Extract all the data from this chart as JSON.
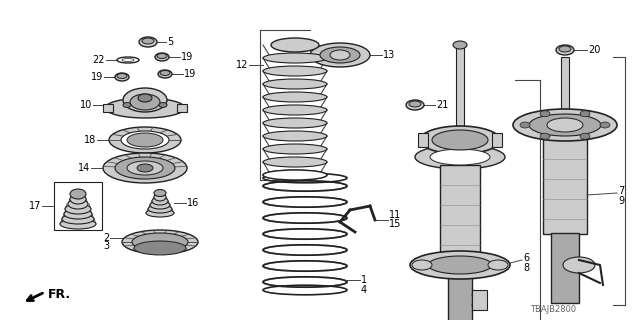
{
  "background_color": "#ffffff",
  "line_color": "#444444",
  "dark_color": "#222222",
  "gray1": "#aaaaaa",
  "gray2": "#cccccc",
  "gray3": "#888888",
  "gray4": "#666666",
  "diagram_code": "TBAJB2800",
  "fr_label": "FR.",
  "label_fs": 7,
  "fig_w": 6.4,
  "fig_h": 3.2,
  "dpi": 100
}
